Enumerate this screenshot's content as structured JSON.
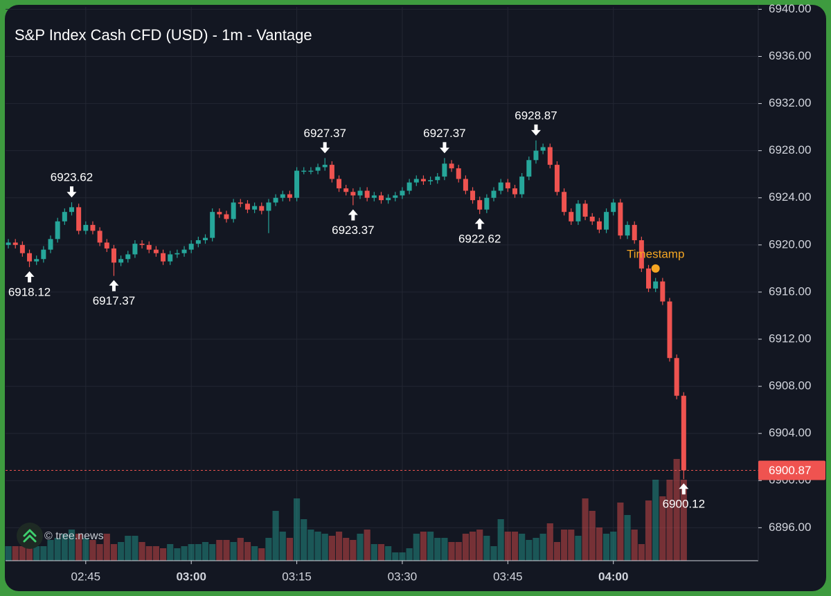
{
  "chart_data": {
    "type": "candlestick",
    "title": "S&P Index Cash CFD (USD) - 1m - Vantage",
    "watermark": "© tree.news",
    "up_color": "#26a69a",
    "down_color": "#ef5350",
    "up_volume_color": "rgba(38,166,154,0.45)",
    "down_volume_color": "rgba(239,83,80,0.45)",
    "x": [
      154,
      155,
      156,
      157,
      158,
      159,
      160,
      161,
      162,
      163,
      164,
      165,
      166,
      167,
      168,
      169,
      170,
      171,
      172,
      173,
      174,
      175,
      176,
      177,
      178,
      179,
      180,
      181,
      182,
      183,
      184,
      185,
      186,
      187,
      188,
      189,
      190,
      191,
      192,
      193,
      194,
      195,
      196,
      197,
      198,
      199,
      200,
      201,
      202,
      203,
      204,
      205,
      206,
      207,
      208,
      209,
      210,
      211,
      212,
      213,
      214,
      215,
      216,
      217,
      218,
      219,
      220,
      221,
      222,
      223,
      224,
      225,
      226,
      227,
      228,
      229,
      230,
      231,
      232,
      233,
      234,
      235,
      236,
      237,
      238,
      239,
      240,
      241,
      242,
      243,
      244,
      245,
      246,
      247,
      248,
      249,
      250
    ],
    "open": [
      6920.0,
      6920.2,
      6920.0,
      6919.3,
      6918.6,
      6918.8,
      6919.6,
      6920.5,
      6922.0,
      6922.8,
      6923.2,
      6921.2,
      6921.7,
      6921.2,
      6920.2,
      6919.7,
      6918.5,
      6918.8,
      6919.2,
      6920.1,
      6920.0,
      6919.6,
      6919.3,
      6918.6,
      6919.2,
      6919.3,
      6919.6,
      6920.1,
      6920.4,
      6920.6,
      6922.8,
      6922.6,
      6922.2,
      6923.6,
      6923.5,
      6923.0,
      6923.3,
      6922.9,
      6923.6,
      6924.0,
      6924.3,
      6924.0,
      6926.3,
      6926.3,
      6926.3,
      6926.6,
      6926.8,
      6925.6,
      6924.8,
      6924.5,
      6924.2,
      6924.6,
      6924.0,
      6924.2,
      6923.8,
      6924.0,
      6924.2,
      6924.6,
      6925.3,
      6925.6,
      6925.4,
      6925.5,
      6925.8,
      6926.9,
      6926.5,
      6925.6,
      6924.6,
      6923.8,
      6923.0,
      6924.0,
      6924.6,
      6925.3,
      6924.8,
      6924.3,
      6925.8,
      6927.2,
      6928.0,
      6928.3,
      6926.8,
      6924.5,
      6922.8,
      6922.0,
      6923.5,
      6922.4,
      6922.0,
      6921.3,
      6922.8,
      6923.6,
      6920.8,
      6921.7,
      6920.4,
      6918.0,
      6916.3,
      6916.9,
      6915.2,
      6910.4,
      6907.2
    ],
    "high": [
      6920.5,
      6920.5,
      6920.3,
      6919.6,
      6919.1,
      6919.9,
      6920.8,
      6922.3,
      6923.1,
      6923.62,
      6923.5,
      6922.0,
      6922.0,
      6921.5,
      6920.5,
      6920.0,
      6919.1,
      6919.5,
      6920.4,
      6920.4,
      6920.3,
      6919.9,
      6919.6,
      6919.5,
      6919.6,
      6919.9,
      6920.4,
      6920.7,
      6920.9,
      6923.1,
      6923.1,
      6922.9,
      6923.9,
      6923.9,
      6923.8,
      6923.6,
      6923.6,
      6923.9,
      6924.3,
      6924.6,
      6924.6,
      6926.6,
      6926.6,
      6926.6,
      6926.9,
      6927.37,
      6927.1,
      6925.9,
      6925.1,
      6924.8,
      6924.9,
      6924.9,
      6924.5,
      6924.5,
      6924.3,
      6924.5,
      6924.9,
      6925.6,
      6925.9,
      6925.9,
      6925.8,
      6926.1,
      6927.37,
      6927.2,
      6926.8,
      6925.9,
      6924.9,
      6924.1,
      6924.3,
      6924.9,
      6925.6,
      6925.6,
      6925.1,
      6926.1,
      6927.5,
      6928.87,
      6928.6,
      6928.6,
      6927.1,
      6924.8,
      6923.1,
      6923.8,
      6923.8,
      6922.7,
      6922.3,
      6923.1,
      6923.9,
      6923.9,
      6922.0,
      6922.0,
      6920.7,
      6918.3,
      6917.2,
      6917.2,
      6915.5,
      6910.7,
      6907.5
    ],
    "low": [
      6919.7,
      6919.7,
      6919.0,
      6918.12,
      6918.3,
      6918.5,
      6919.3,
      6920.2,
      6921.7,
      6922.5,
      6920.9,
      6920.9,
      6920.9,
      6919.9,
      6919.4,
      6917.37,
      6918.2,
      6918.5,
      6918.9,
      6919.7,
      6919.3,
      6919.0,
      6918.3,
      6918.3,
      6918.9,
      6919.0,
      6919.3,
      6919.8,
      6920.1,
      6920.3,
      6922.3,
      6921.9,
      6921.9,
      6923.2,
      6922.7,
      6922.7,
      6922.6,
      6921.0,
      6923.3,
      6923.7,
      6923.7,
      6923.7,
      6926.0,
      6926.0,
      6926.0,
      6926.3,
      6925.3,
      6924.5,
      6924.2,
      6923.37,
      6923.9,
      6923.7,
      6923.7,
      6923.5,
      6923.5,
      6923.7,
      6923.9,
      6924.3,
      6925.0,
      6925.1,
      6925.1,
      6925.2,
      6925.5,
      6926.2,
      6925.3,
      6924.3,
      6923.5,
      6922.62,
      6922.7,
      6923.7,
      6924.3,
      6924.5,
      6924.0,
      6924.0,
      6925.5,
      6926.9,
      6927.7,
      6926.5,
      6924.2,
      6922.5,
      6921.7,
      6921.7,
      6922.1,
      6921.7,
      6921.0,
      6921.0,
      6922.5,
      6920.5,
      6920.5,
      6920.1,
      6917.7,
      6916.0,
      6916.0,
      6914.9,
      6910.1,
      6906.9,
      6900.12
    ],
    "close": [
      6920.2,
      6920.0,
      6919.3,
      6918.6,
      6918.8,
      6919.6,
      6920.5,
      6922.0,
      6922.8,
      6923.2,
      6921.2,
      6921.7,
      6921.2,
      6920.2,
      6919.7,
      6918.5,
      6918.8,
      6919.2,
      6920.1,
      6920.0,
      6919.6,
      6919.3,
      6918.6,
      6919.2,
      6919.3,
      6919.6,
      6920.1,
      6920.4,
      6920.6,
      6922.8,
      6922.6,
      6922.2,
      6923.6,
      6923.5,
      6923.0,
      6923.3,
      6922.9,
      6923.6,
      6924.0,
      6924.3,
      6924.0,
      6926.3,
      6926.3,
      6926.3,
      6926.6,
      6926.8,
      6925.6,
      6924.8,
      6924.5,
      6924.2,
      6924.6,
      6924.0,
      6924.2,
      6923.8,
      6924.0,
      6924.2,
      6924.6,
      6925.3,
      6925.6,
      6925.4,
      6925.5,
      6925.8,
      6926.9,
      6926.5,
      6925.6,
      6924.6,
      6923.8,
      6923.0,
      6924.0,
      6924.6,
      6925.3,
      6924.8,
      6924.3,
      6925.8,
      6927.2,
      6928.0,
      6928.3,
      6926.8,
      6924.5,
      6922.8,
      6922.0,
      6923.5,
      6922.4,
      6922.0,
      6921.3,
      6922.8,
      6923.6,
      6920.8,
      6921.7,
      6920.4,
      6918.0,
      6916.3,
      6916.9,
      6915.2,
      6910.4,
      6907.2,
      6900.87
    ],
    "volume": [
      14,
      14,
      14,
      12,
      14,
      14,
      20,
      22,
      26,
      30,
      26,
      22,
      20,
      16,
      26,
      16,
      18,
      24,
      24,
      18,
      14,
      14,
      12,
      16,
      12,
      14,
      16,
      16,
      18,
      16,
      20,
      20,
      18,
      22,
      18,
      14,
      12,
      22,
      48,
      28,
      22,
      60,
      40,
      30,
      28,
      26,
      24,
      28,
      22,
      20,
      26,
      30,
      16,
      16,
      14,
      8,
      8,
      12,
      26,
      28,
      28,
      22,
      22,
      18,
      18,
      26,
      28,
      30,
      24,
      14,
      40,
      28,
      28,
      26,
      20,
      22,
      26,
      36,
      18,
      30,
      30,
      24,
      60,
      48,
      32,
      26,
      28,
      56,
      44,
      30,
      16,
      58,
      78,
      62,
      78,
      98,
      78
    ],
    "xlim": [
      153.6,
      260.6
    ],
    "xticks": [
      {
        "value": 165,
        "label": "02:45"
      },
      {
        "value": 180,
        "label": "03:00"
      },
      {
        "value": 195,
        "label": "03:15"
      },
      {
        "value": 210,
        "label": "03:30"
      },
      {
        "value": 225,
        "label": "03:45"
      },
      {
        "value": 240,
        "label": "04:00"
      }
    ],
    "ylim": [
      6893.2,
      6940.2
    ],
    "yticks": [
      {
        "value": 6896,
        "label": "6896.00"
      },
      {
        "value": 6900,
        "label": "6900.00"
      },
      {
        "value": 6904,
        "label": "6904.00"
      },
      {
        "value": 6908,
        "label": "6908.00"
      },
      {
        "value": 6912,
        "label": "6912.00"
      },
      {
        "value": 6916,
        "label": "6916.00"
      },
      {
        "value": 6920,
        "label": "6920.00"
      },
      {
        "value": 6924,
        "label": "6924.00"
      },
      {
        "value": 6928,
        "label": "6928.00"
      },
      {
        "value": 6932,
        "label": "6932.00"
      },
      {
        "value": 6936,
        "label": "6936.00"
      },
      {
        "value": 6940,
        "label": "6940.00"
      }
    ],
    "grid": true,
    "last_price": 6900.87,
    "markers": [
      {
        "x": 157,
        "value": 6918.12,
        "position": "below"
      },
      {
        "x": 163,
        "value": 6923.62,
        "position": "above"
      },
      {
        "x": 169,
        "value": 6917.37,
        "position": "below"
      },
      {
        "x": 199,
        "value": 6927.37,
        "position": "above"
      },
      {
        "x": 203,
        "value": 6923.37,
        "position": "below"
      },
      {
        "x": 216,
        "value": 6927.37,
        "position": "above"
      },
      {
        "x": 221,
        "value": 6922.62,
        "position": "below"
      },
      {
        "x": 229,
        "value": 6928.87,
        "position": "above"
      },
      {
        "x": 250,
        "value": 6900.12,
        "position": "below"
      }
    ],
    "annotations": [
      {
        "text": "Timestamp",
        "x": 246,
        "y": 6918.0,
        "color": "#f5a623"
      }
    ]
  }
}
